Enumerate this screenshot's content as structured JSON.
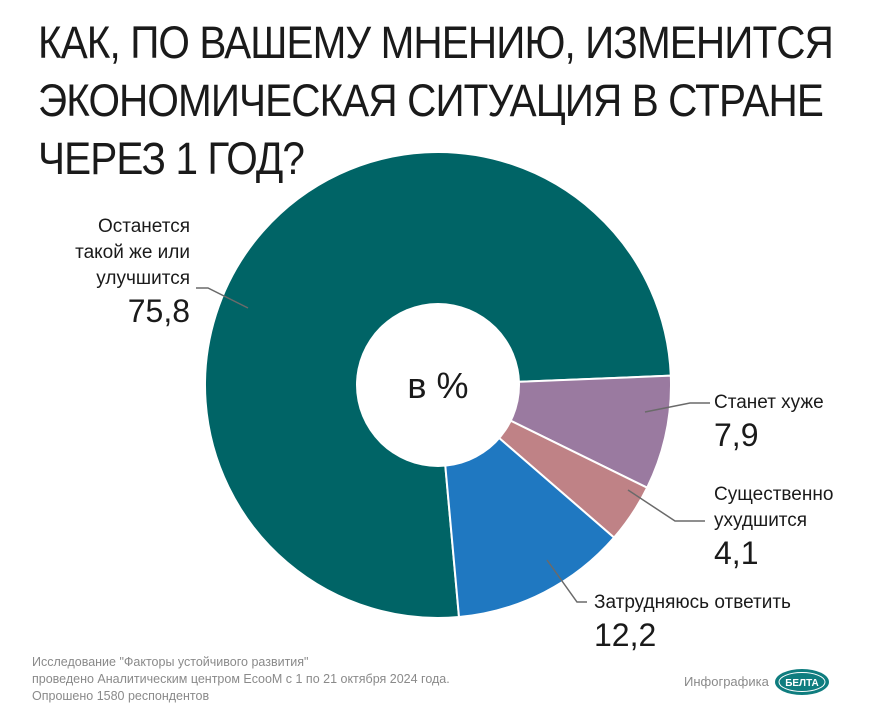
{
  "title_lines": [
    "КАК, ПО ВАШЕМУ МНЕНИЮ, ИЗМЕНИТСЯ",
    "ЭКОНОМИЧЕСКАЯ СИТУАЦИЯ В СТРАНЕ",
    "ЧЕРЕЗ 1 ГОД?"
  ],
  "center_label": "в %",
  "chart_data": {
    "type": "pie",
    "title": "КАК, ПО ВАШЕМУ МНЕНИЮ, ИЗМЕНИТСЯ ЭКОНОМИЧЕСКАЯ СИТУАЦИЯ В СТРАНЕ ЧЕРЕЗ 1 ГОД?",
    "unit": "в %",
    "donut": true,
    "slices": [
      {
        "label": "Останется такой же или улучшится",
        "label_lines": [
          "Останется",
          "такой же или",
          "улучшится"
        ],
        "value": 75.8,
        "display": "75,8",
        "color": "#006466"
      },
      {
        "label": "Станет хуже",
        "label_lines": [
          "Станет хуже"
        ],
        "value": 7.9,
        "display": "7,9",
        "color": "#9a7aa0"
      },
      {
        "label": "Существенно ухудшится",
        "label_lines": [
          "Существенно",
          "ухудшится"
        ],
        "value": 4.1,
        "display": "4,1",
        "color": "#bf8286"
      },
      {
        "label": "Затрудняюсь ответить",
        "label_lines": [
          "Затрудняюсь ответить"
        ],
        "value": 12.2,
        "display": "12,2",
        "color": "#1f78c1"
      }
    ]
  },
  "footer_lines": [
    "Исследование \"Факторы устойчивого развития\"",
    "проведено Аналитическим центром EcooM с 1 по 21 октября 2024 года.",
    "Опрошено 1580 респондентов"
  ],
  "credit": "Инфографика",
  "logo_text": "БЕЛТА",
  "colors": {
    "leader_line": "#6a6a6a",
    "logo_bg": "#0f7d7f"
  }
}
